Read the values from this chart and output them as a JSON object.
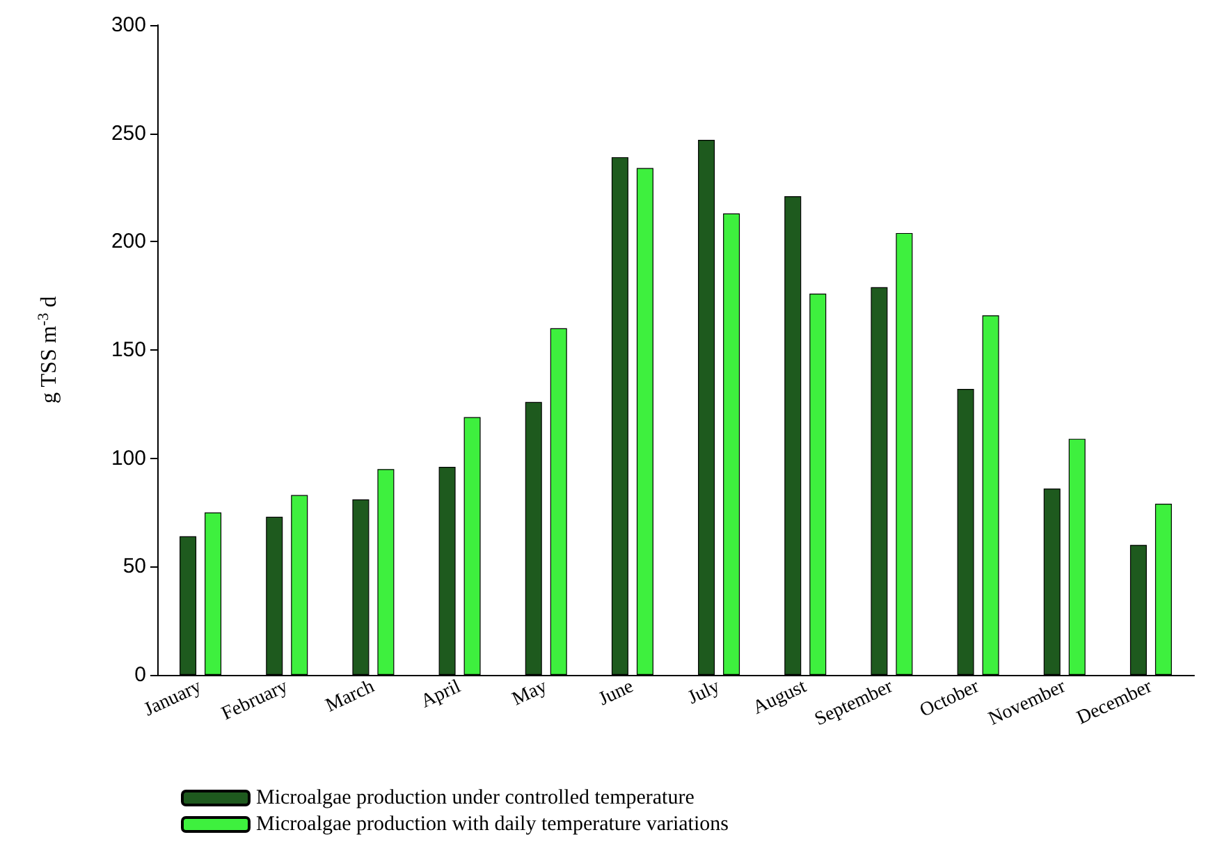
{
  "chart_data": {
    "type": "bar",
    "ylabel": "g TSS m$^{-3}$ d",
    "categories": [
      "January",
      "February",
      "March",
      "April",
      "May",
      "June",
      "July",
      "August",
      "September",
      "October",
      "November",
      "December"
    ],
    "series": [
      {
        "name": "Microalgae production under controlled temperature",
        "color": "#1e5a1e",
        "values": [
          64,
          73,
          81,
          96,
          126,
          239,
          247,
          221,
          179,
          132,
          86,
          60
        ]
      },
      {
        "name": "Microalgae production with daily temperature variations",
        "color": "#3ef03e",
        "values": [
          75,
          83,
          95,
          119,
          160,
          234,
          213,
          176,
          204,
          166,
          109,
          79
        ]
      }
    ],
    "ylim": [
      0,
      300
    ],
    "yticks": [
      0,
      50,
      100,
      150,
      200,
      250,
      300
    ],
    "grid": false,
    "legend": "bottom left"
  }
}
